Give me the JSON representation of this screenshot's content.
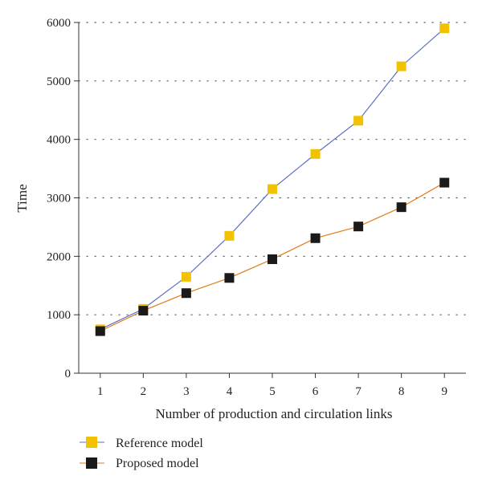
{
  "chart_data": {
    "type": "line",
    "x": [
      1,
      2,
      3,
      4,
      5,
      6,
      7,
      8,
      9
    ],
    "xlabel": "Number of production and circulation links",
    "ylabel": "Time",
    "ylim": [
      0,
      6000
    ],
    "yticks": [
      0,
      1000,
      2000,
      3000,
      4000,
      5000,
      6000
    ],
    "xticks": [
      1,
      2,
      3,
      4,
      5,
      6,
      7,
      8,
      9
    ],
    "grid": "horizontal dotted",
    "legend_position": "bottom-left",
    "series": [
      {
        "name": "Reference model",
        "values": [
          750,
          1100,
          1650,
          2350,
          3150,
          3750,
          4320,
          5250,
          5900
        ],
        "line_color": "#5b6fc4",
        "marker_color": "#f2c200",
        "marker": "square"
      },
      {
        "name": "Proposed model",
        "values": [
          720,
          1070,
          1370,
          1630,
          1950,
          2310,
          2510,
          2840,
          3260
        ],
        "line_color": "#e07b1a",
        "marker_color": "#1a1a1a",
        "marker": "square"
      }
    ]
  }
}
